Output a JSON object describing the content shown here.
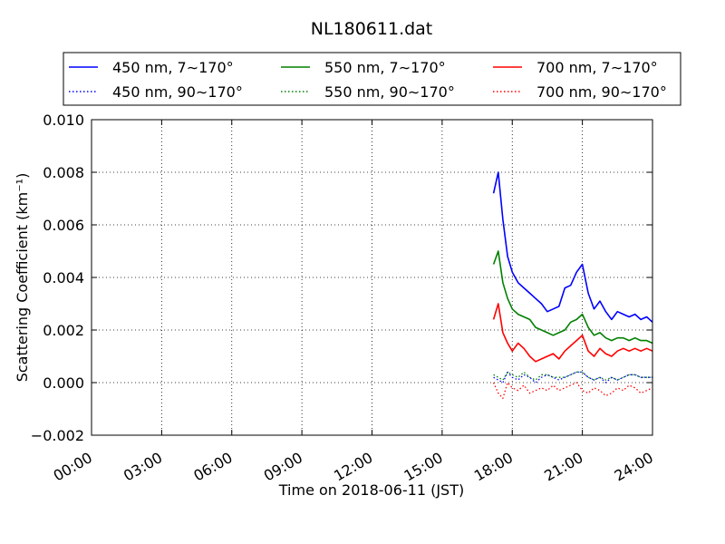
{
  "chart_data": {
    "type": "line",
    "title": "NL180611.dat",
    "xlabel": "Time on 2018-06-11 (JST)",
    "ylabel": "Scattering Coefficient (km⁻¹)",
    "x_unit": "hours",
    "xlim": [
      0,
      24
    ],
    "ylim": [
      -0.002,
      0.01
    ],
    "xticks": [
      0,
      3,
      6,
      9,
      12,
      15,
      18,
      21,
      24
    ],
    "xtick_labels": [
      "00:00",
      "03:00",
      "06:00",
      "09:00",
      "12:00",
      "15:00",
      "18:00",
      "21:00",
      "24:00"
    ],
    "yticks": [
      -0.002,
      0.0,
      0.002,
      0.004,
      0.006,
      0.008,
      0.01
    ],
    "ytick_labels": [
      "−0.002",
      "0.000",
      "0.002",
      "0.004",
      "0.006",
      "0.008",
      "0.010"
    ],
    "grid": true,
    "legend_position": "top",
    "x": [
      17.2,
      17.4,
      17.6,
      17.8,
      18.0,
      18.25,
      18.5,
      18.75,
      19.0,
      19.25,
      19.5,
      19.75,
      20.0,
      20.25,
      20.5,
      20.75,
      21.0,
      21.25,
      21.5,
      21.75,
      22.0,
      22.25,
      22.5,
      22.75,
      23.0,
      23.25,
      23.5,
      23.75,
      24.0
    ],
    "series": [
      {
        "name": "450 nm, 7∼170°",
        "color": "#0000ff",
        "style": "solid",
        "values": [
          0.0072,
          0.008,
          0.0062,
          0.0048,
          0.0042,
          0.0038,
          0.0036,
          0.0034,
          0.0032,
          0.003,
          0.0027,
          0.0028,
          0.0029,
          0.0036,
          0.0037,
          0.0042,
          0.0045,
          0.0034,
          0.0028,
          0.0031,
          0.0027,
          0.0024,
          0.0027,
          0.0026,
          0.0025,
          0.0026,
          0.0024,
          0.0025,
          0.0023
        ]
      },
      {
        "name": "450 nm, 90∼170°",
        "color": "#0000ff",
        "style": "dotted",
        "values": [
          0.0002,
          0.0001,
          0.0,
          0.0004,
          0.0002,
          0.0001,
          0.0003,
          0.0002,
          0.0,
          0.0002,
          0.0003,
          0.0002,
          0.0001,
          0.0002,
          0.0003,
          0.0004,
          0.0004,
          0.0002,
          0.0001,
          0.0002,
          0.0,
          0.0002,
          0.0001,
          0.0002,
          0.0003,
          0.0003,
          0.0002,
          0.0002,
          0.0002
        ]
      },
      {
        "name": "550 nm, 7∼170°",
        "color": "#008000",
        "style": "solid",
        "values": [
          0.0045,
          0.005,
          0.0038,
          0.0032,
          0.0028,
          0.0026,
          0.0025,
          0.0024,
          0.0021,
          0.002,
          0.0019,
          0.0018,
          0.0019,
          0.002,
          0.0023,
          0.0024,
          0.0026,
          0.0021,
          0.0018,
          0.0019,
          0.0017,
          0.0016,
          0.0017,
          0.0017,
          0.0016,
          0.0017,
          0.0016,
          0.0016,
          0.0015
        ]
      },
      {
        "name": "550 nm, 90∼170°",
        "color": "#008000",
        "style": "dotted",
        "values": [
          0.0003,
          0.0002,
          0.0001,
          0.0004,
          0.0003,
          0.0002,
          0.0004,
          0.0002,
          0.0001,
          0.0003,
          0.0003,
          0.0002,
          0.0002,
          0.0002,
          0.0003,
          0.0004,
          0.0004,
          0.0002,
          0.0001,
          0.0002,
          0.0001,
          0.0002,
          0.0001,
          0.0002,
          0.0003,
          0.0003,
          0.0002,
          0.0002,
          0.0002
        ]
      },
      {
        "name": "700 nm, 7∼170°",
        "color": "#ff0000",
        "style": "solid",
        "values": [
          0.0024,
          0.003,
          0.0019,
          0.0015,
          0.0012,
          0.0015,
          0.0013,
          0.001,
          0.0008,
          0.0009,
          0.001,
          0.0011,
          0.0009,
          0.0012,
          0.0014,
          0.0016,
          0.0018,
          0.0012,
          0.001,
          0.0013,
          0.0011,
          0.001,
          0.0012,
          0.0013,
          0.0012,
          0.0013,
          0.0012,
          0.0013,
          0.0012
        ]
      },
      {
        "name": "700 nm, 90∼170°",
        "color": "#ff0000",
        "style": "dotted",
        "values": [
          0.0,
          -0.0004,
          -0.0006,
          0.0,
          -0.0002,
          -0.0003,
          -0.0001,
          -0.0004,
          -0.0003,
          -0.0002,
          -0.0003,
          -0.0001,
          -0.0003,
          -0.0002,
          -0.0001,
          0.0,
          -0.0003,
          -0.0004,
          -0.0002,
          -0.0003,
          -0.0005,
          -0.0004,
          -0.0002,
          -0.0003,
          -0.0001,
          -0.0002,
          -0.0004,
          -0.0003,
          -0.0002
        ]
      }
    ]
  }
}
